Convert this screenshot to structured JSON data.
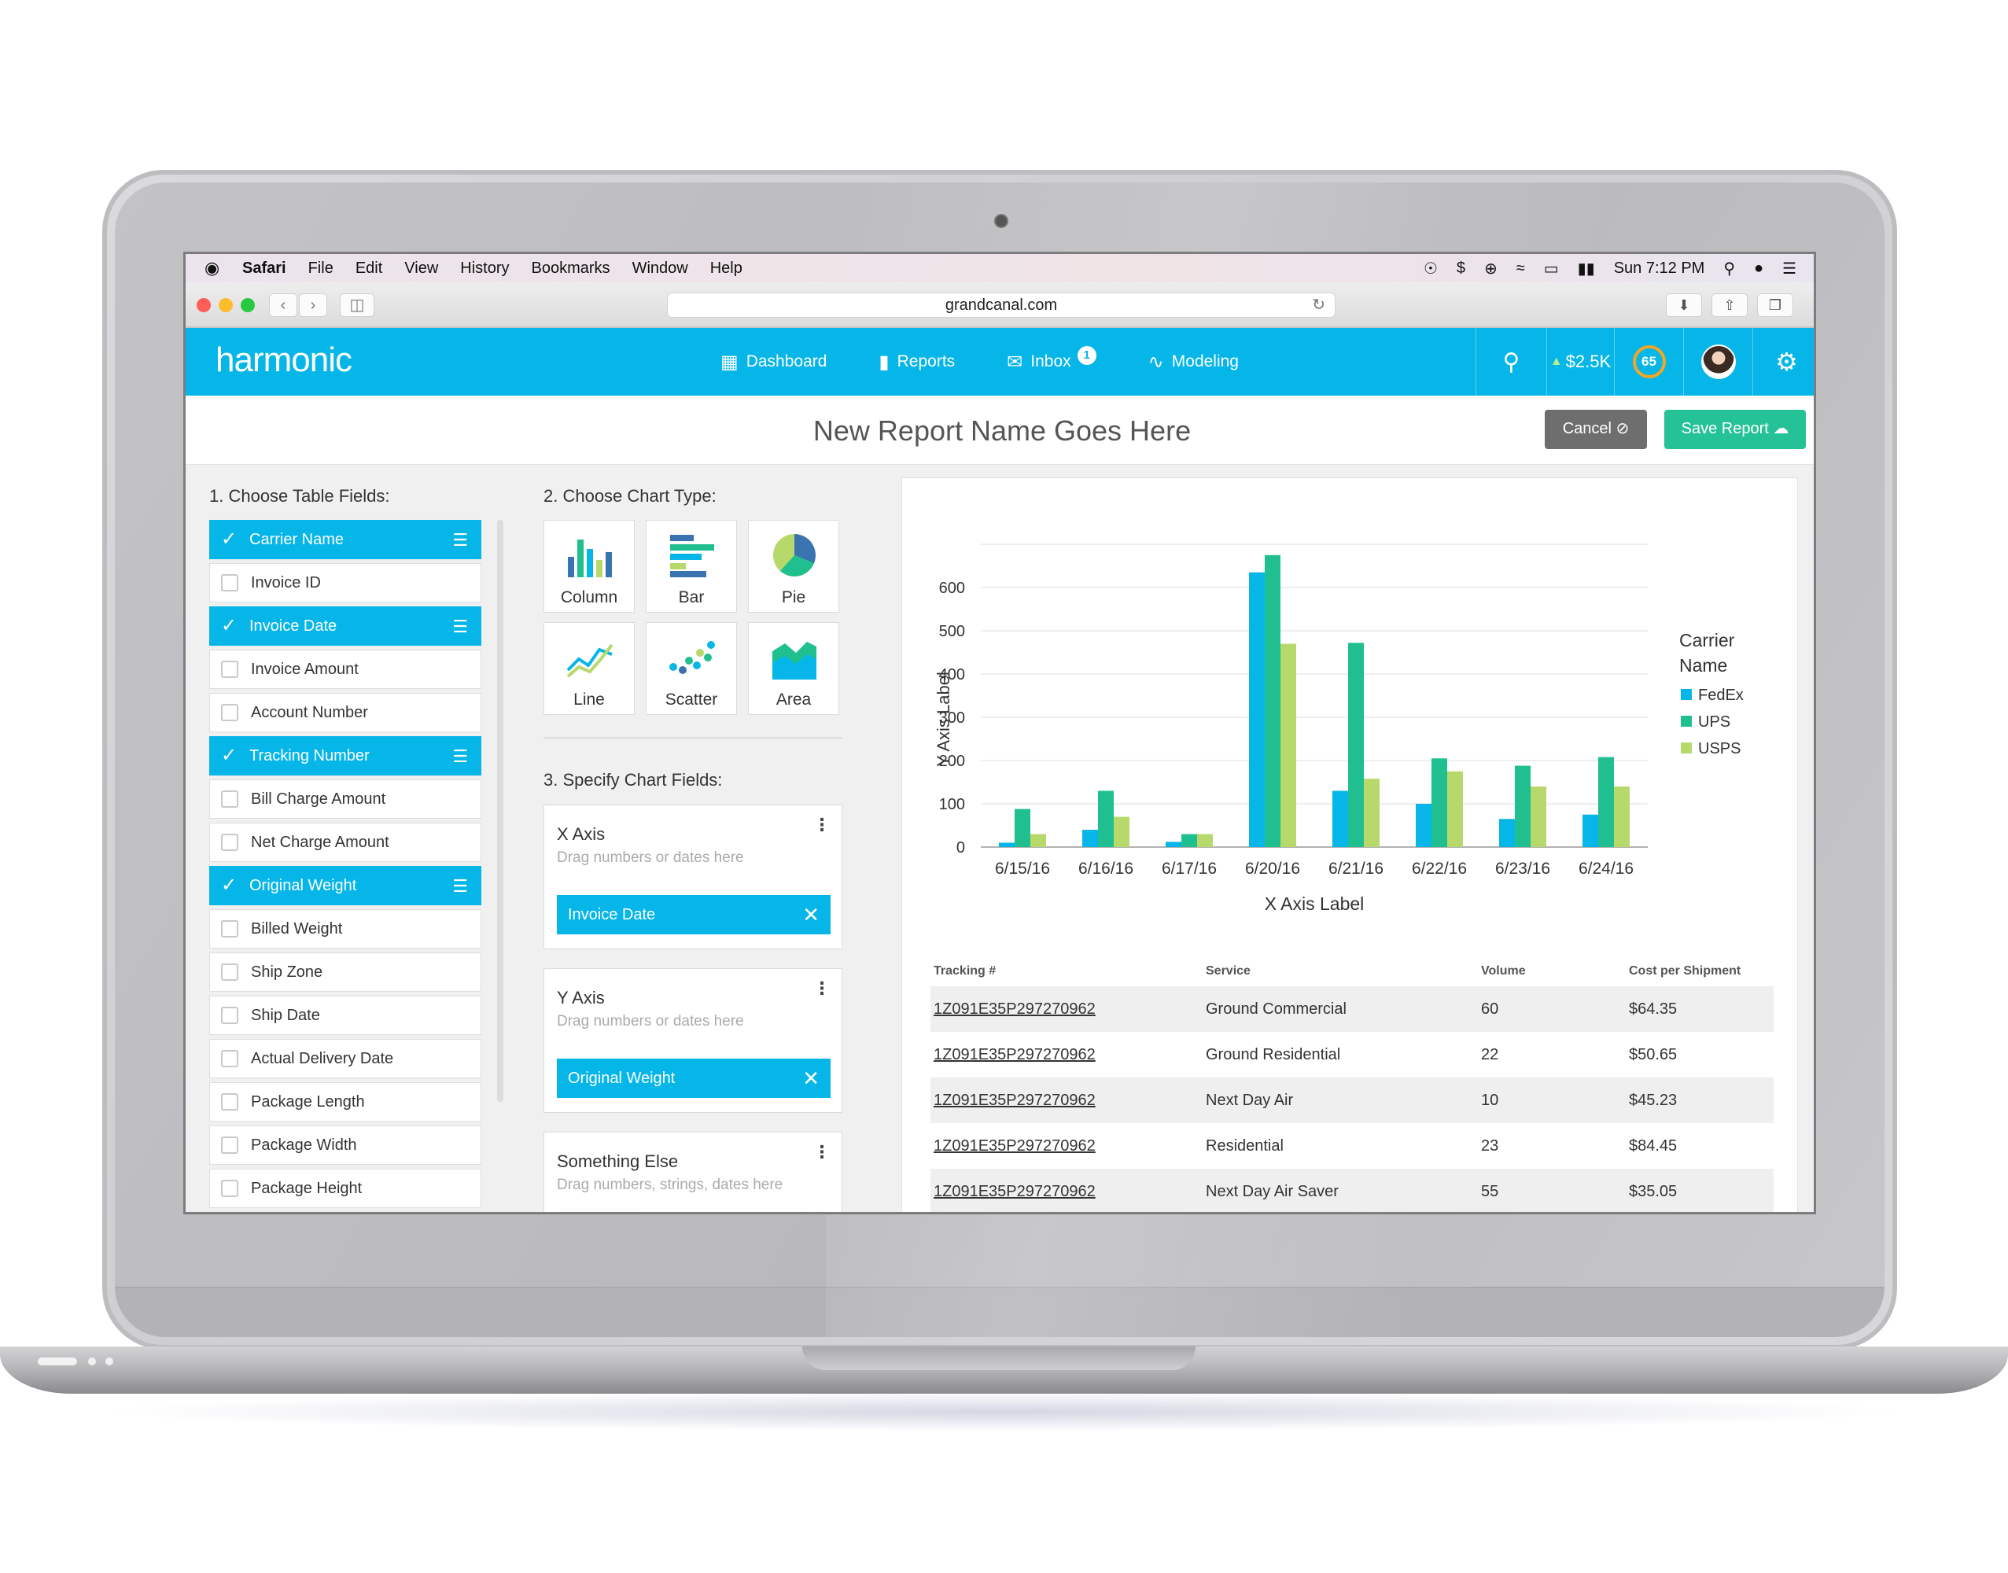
{
  "menubar": {
    "items": [
      "Safari",
      "File",
      "Edit",
      "View",
      "History",
      "Bookmarks",
      "Window",
      "Help"
    ],
    "clock": "Sun 7:12 PM"
  },
  "browser": {
    "url": "grandcanal.com"
  },
  "app": {
    "logo": "harmonic",
    "nav": [
      {
        "label": "Dashboard",
        "icon": "dashboard-icon"
      },
      {
        "label": "Reports",
        "icon": "bar-chart-icon"
      },
      {
        "label": "Inbox",
        "icon": "envelope-icon",
        "badge": "1"
      },
      {
        "label": "Modeling",
        "icon": "pulse-icon"
      }
    ],
    "balance": "$2.5K",
    "score": "65",
    "colors": {
      "accent": "#06b6e8",
      "save": "#25c197",
      "cancel": "#6e6e6e"
    }
  },
  "report": {
    "title": "New Report Name Goes Here",
    "cancel_label": "Cancel",
    "save_label": "Save Report"
  },
  "table_fields": {
    "heading": "1. Choose Table Fields:",
    "items": [
      {
        "label": "Carrier Name",
        "selected": true
      },
      {
        "label": "Invoice ID",
        "selected": false
      },
      {
        "label": "Invoice Date",
        "selected": true
      },
      {
        "label": "Invoice Amount",
        "selected": false
      },
      {
        "label": "Account Number",
        "selected": false
      },
      {
        "label": "Tracking Number",
        "selected": true
      },
      {
        "label": "Bill Charge Amount",
        "selected": false
      },
      {
        "label": "Net Charge Amount",
        "selected": false
      },
      {
        "label": "Original Weight",
        "selected": true
      },
      {
        "label": "Billed Weight",
        "selected": false
      },
      {
        "label": "Ship Zone",
        "selected": false
      },
      {
        "label": "Ship Date",
        "selected": false
      },
      {
        "label": "Actual Delivery Date",
        "selected": false
      },
      {
        "label": "Package Length",
        "selected": false
      },
      {
        "label": "Package Width",
        "selected": false
      },
      {
        "label": "Package Height",
        "selected": false
      }
    ]
  },
  "chart_types": {
    "heading": "2. Choose Chart Type:",
    "items": [
      "Column",
      "Bar",
      "Pie",
      "Line",
      "Scatter",
      "Area"
    ]
  },
  "chart_fields": {
    "heading": "3. Specify Chart Fields:",
    "x_axis": {
      "title": "X Axis",
      "hint": "Drag numbers or dates here",
      "value": "Invoice Date"
    },
    "y_axis": {
      "title": "Y Axis",
      "hint": "Drag numbers or dates here",
      "value": "Original Weight"
    },
    "other": {
      "title": "Something Else",
      "hint": "Drag numbers, strings, dates here"
    }
  },
  "chart_data": {
    "type": "bar",
    "categories": [
      "6/15/16",
      "6/16/16",
      "6/17/16",
      "6/20/16",
      "6/21/16",
      "6/22/16",
      "6/23/16",
      "6/24/16"
    ],
    "series": [
      {
        "name": "FedEx",
        "color": "#06b6e8",
        "values": [
          10,
          40,
          12,
          635,
          130,
          100,
          65,
          75
        ]
      },
      {
        "name": "UPS",
        "color": "#1fbf8f",
        "values": [
          88,
          130,
          30,
          675,
          472,
          205,
          188,
          208
        ]
      },
      {
        "name": "USPS",
        "color": "#b7d96b",
        "values": [
          30,
          70,
          30,
          470,
          158,
          175,
          140,
          140
        ]
      }
    ],
    "yticks": [
      0,
      100,
      200,
      300,
      400,
      500,
      600
    ],
    "ylim": [
      0,
      700
    ],
    "xlabel": "X Axis Label",
    "ylabel": "Y Axis Label",
    "legend_title": "Carrier Name",
    "legend_position": "right",
    "grid": true
  },
  "shipments": {
    "headers": [
      "Tracking #",
      "Service",
      "Volume",
      "Cost per Shipment"
    ],
    "rows": [
      [
        "1Z091E35P297270962",
        "Ground Commercial",
        "60",
        "$64.35"
      ],
      [
        "1Z091E35P297270962",
        "Ground Residential",
        "22",
        "$50.65"
      ],
      [
        "1Z091E35P297270962",
        "Next Day Air",
        "10",
        "$45.23"
      ],
      [
        "1Z091E35P297270962",
        "Residential",
        "23",
        "$84.45"
      ],
      [
        "1Z091E35P297270962",
        "Next Day Air Saver",
        "55",
        "$35.05"
      ]
    ]
  }
}
